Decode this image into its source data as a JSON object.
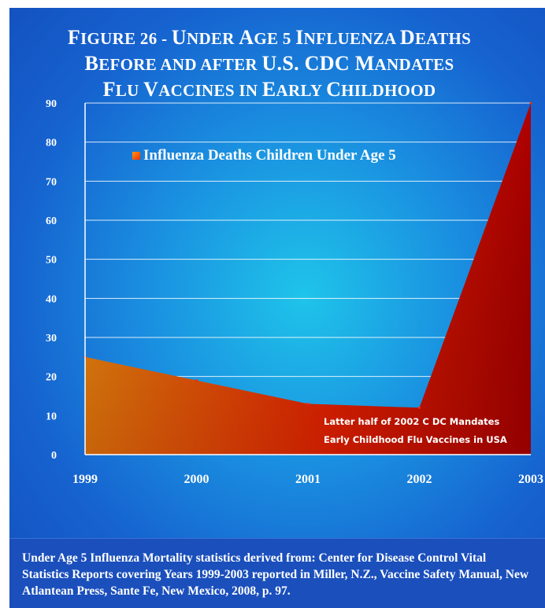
{
  "title_lines": [
    {
      "parts": [
        [
          "F",
          "big"
        ],
        [
          "IGURE 26 - ",
          ""
        ],
        [
          "U",
          "big"
        ],
        [
          "NDER ",
          ""
        ],
        [
          "A",
          "big"
        ],
        [
          "GE 5 ",
          ""
        ],
        [
          "I",
          "big"
        ],
        [
          "NFLUENZA ",
          ""
        ],
        [
          "D",
          "big"
        ],
        [
          "EATHS",
          ""
        ]
      ]
    },
    {
      "parts": [
        [
          "B",
          "big"
        ],
        [
          "EFORE AND AFTER ",
          ""
        ],
        [
          "U.S. CDC M",
          "big"
        ],
        [
          "ANDATES",
          ""
        ]
      ]
    },
    {
      "parts": [
        [
          "F",
          "big"
        ],
        [
          "LU ",
          ""
        ],
        [
          "V",
          "big"
        ],
        [
          "ACCINES IN ",
          ""
        ],
        [
          "E",
          "big"
        ],
        [
          "ARLY ",
          ""
        ],
        [
          "C",
          "big"
        ],
        [
          "HILDHOOD",
          ""
        ]
      ]
    }
  ],
  "chart_data": {
    "type": "area",
    "title": "FIGURE 26 - UNDER AGE 5 INFLUENZA DEATHS BEFORE AND AFTER U.S. CDC MANDATES FLU VACCINES IN EARLY CHILDHOOD",
    "categories": [
      "1999",
      "2000",
      "2001",
      "2002",
      "2003"
    ],
    "series": [
      {
        "name": "Influenza Deaths Children Under Age 5",
        "values": [
          25,
          19,
          13,
          12,
          90
        ]
      }
    ],
    "ylim": [
      0,
      90
    ],
    "yticks": [
      0,
      10,
      20,
      30,
      40,
      50,
      60,
      70,
      80,
      90
    ],
    "grid": true,
    "legend_position": "top-left",
    "annotation_lines": [
      "Latter half of 2002 C DC Mandates",
      "Early Childhood Flu Vaccines in USA"
    ],
    "colors": {
      "fill_start": "#ff9a10",
      "fill_mid": "#ff2a00",
      "fill_end": "#b00000",
      "text": "#ffffff",
      "grid": "#ffffff"
    }
  },
  "caption": "Under Age 5 Influenza Mortality statistics derived from: Center for Disease Control Vital Statistics Reports covering Years 1999-2003 reported in Miller, N.Z., Vaccine Safety Manual, New Atlantean Press,  Sante Fe, New Mexico, 2008, p. 97."
}
